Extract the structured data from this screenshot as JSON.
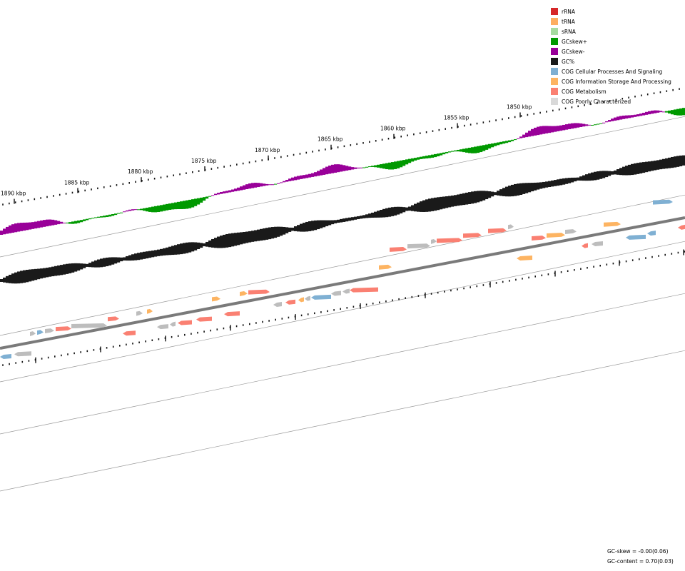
{
  "ruler": {
    "labels": [
      "1890 kbp",
      "1885 kbp",
      "1880 kbp",
      "1875 kbp",
      "1870 kbp",
      "1865 kbp",
      "1860 kbp",
      "1855 kbp",
      "1850 kbp"
    ]
  },
  "legend": {
    "items": [
      {
        "label": "rRNA",
        "color": "#d62728"
      },
      {
        "label": "tRNA",
        "color": "#fdae61"
      },
      {
        "label": "sRNA",
        "color": "#a6dba0"
      },
      {
        "label": "GCskew+",
        "color": "#009900"
      },
      {
        "label": "GCskew-",
        "color": "#990099"
      },
      {
        "label": "GC%",
        "color": "#1a1a1a"
      },
      {
        "label": "COG Cellular Processes And Signaling",
        "color": "#7fb0d3"
      },
      {
        "label": "COG Information Storage And Processing",
        "color": "#fdb462"
      },
      {
        "label": "COG Metabolism",
        "color": "#fa8072"
      },
      {
        "label": "COG Poorly Characterized",
        "color": "#d9d9d9"
      }
    ]
  },
  "stats": {
    "gc_skew": "GC-skew = -0.00(0.06)",
    "gc_content": "GC-content = 0.70(0.03)"
  }
}
